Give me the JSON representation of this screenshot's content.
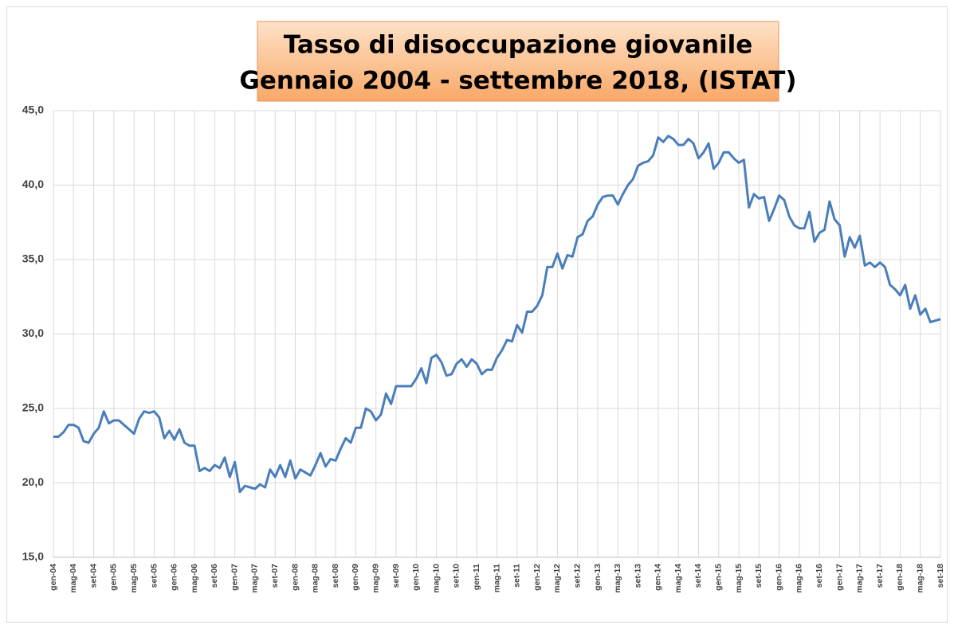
{
  "chart_data": {
    "type": "line",
    "title": "Tasso di disoccupazione giovanile",
    "subtitle": "Gennaio 2004 - settembre 2018, (ISTAT)",
    "categories": [
      "gen-04",
      null,
      null,
      null,
      "mag-04",
      null,
      null,
      null,
      "set-04",
      null,
      null,
      null,
      "gen-05",
      null,
      null,
      null,
      "mag-05",
      null,
      null,
      null,
      "set-05",
      null,
      null,
      null,
      "gen-06",
      null,
      null,
      null,
      "mag-06",
      null,
      null,
      null,
      "set-06",
      null,
      null,
      null,
      "gen-07",
      null,
      null,
      null,
      "mag-07",
      null,
      null,
      null,
      "set-07",
      null,
      null,
      null,
      "gen-08",
      null,
      null,
      null,
      "mag-08",
      null,
      null,
      null,
      "set-08",
      null,
      null,
      null,
      "gen-09",
      null,
      null,
      null,
      "mag-09",
      null,
      null,
      null,
      "set-09",
      null,
      null,
      null,
      "gen-10",
      null,
      null,
      null,
      "mag-10",
      null,
      null,
      null,
      "set-10",
      null,
      null,
      null,
      "gen-11",
      null,
      null,
      null,
      "mag-11",
      null,
      null,
      null,
      "set-11",
      null,
      null,
      null,
      "gen-12",
      null,
      null,
      null,
      "mag-12",
      null,
      null,
      null,
      "set-12",
      null,
      null,
      null,
      "gen-13",
      null,
      null,
      null,
      "mag-13",
      null,
      null,
      null,
      "set-13",
      null,
      null,
      null,
      "gen-14",
      null,
      null,
      null,
      "mag-14",
      null,
      null,
      null,
      "set-14",
      null,
      null,
      null,
      "gen-15",
      null,
      null,
      null,
      "mag-15",
      null,
      null,
      null,
      "set-15",
      null,
      null,
      null,
      "gen-16",
      null,
      null,
      null,
      "mag-16",
      null,
      null,
      null,
      "set-16",
      null,
      null,
      null,
      "gen-17",
      null,
      null,
      null,
      "mag-17",
      null,
      null,
      null,
      "set-17",
      null,
      null,
      null,
      "gen-18",
      null,
      null,
      null,
      "mag-18",
      null,
      null,
      null,
      "set-18"
    ],
    "values": [
      23.1,
      23.1,
      23.4,
      23.9,
      23.9,
      23.7,
      22.8,
      22.7,
      23.3,
      23.7,
      24.8,
      24.0,
      24.2,
      24.2,
      23.9,
      23.6,
      23.3,
      24.3,
      24.8,
      24.7,
      24.8,
      24.4,
      23.0,
      23.5,
      22.9,
      23.6,
      22.7,
      22.5,
      22.5,
      20.8,
      21.0,
      20.8,
      21.2,
      21.0,
      21.7,
      20.4,
      21.4,
      19.4,
      19.8,
      19.7,
      19.6,
      19.9,
      19.7,
      20.9,
      20.4,
      21.2,
      20.4,
      21.5,
      20.3,
      20.9,
      20.7,
      20.5,
      21.2,
      22.0,
      21.1,
      21.6,
      21.5,
      22.3,
      23.0,
      22.7,
      23.7,
      23.7,
      25.0,
      24.8,
      24.2,
      24.6,
      26.0,
      25.3,
      26.5,
      26.5,
      26.5,
      26.5,
      27.0,
      27.7,
      26.7,
      28.4,
      28.6,
      28.1,
      27.2,
      27.3,
      28.0,
      28.3,
      27.8,
      28.3,
      28.0,
      27.3,
      27.6,
      27.6,
      28.4,
      28.9,
      29.6,
      29.5,
      30.6,
      30.1,
      31.5,
      31.5,
      31.9,
      32.6,
      34.5,
      34.5,
      35.4,
      34.4,
      35.3,
      35.2,
      36.5,
      36.7,
      37.6,
      37.9,
      38.7,
      39.2,
      39.3,
      39.3,
      38.7,
      39.4,
      40.0,
      40.4,
      41.3,
      41.5,
      41.6,
      42.0,
      43.2,
      42.9,
      43.3,
      43.1,
      42.7,
      42.7,
      43.1,
      42.8,
      41.8,
      42.2,
      42.8,
      41.1,
      41.5,
      42.2,
      42.2,
      41.8,
      41.5,
      41.7,
      38.5,
      39.4,
      39.1,
      39.2,
      37.6,
      38.4,
      39.3,
      39.0,
      37.9,
      37.3,
      37.1,
      37.1,
      38.2,
      36.2,
      36.8,
      37.0,
      38.9,
      37.7,
      37.3,
      35.2,
      36.5,
      35.8,
      36.6,
      34.6,
      34.8,
      34.5,
      34.8,
      34.5,
      33.3,
      33.0,
      32.6,
      33.3,
      31.7,
      32.6,
      31.3,
      31.7,
      30.8,
      30.9,
      31.0
    ],
    "color": "#4a7ebb",
    "ylim": [
      15,
      45
    ],
    "yticks": [
      {
        "value": 15,
        "label": "15,0"
      },
      {
        "value": 20,
        "label": "20,0"
      },
      {
        "value": 25,
        "label": "25,0"
      },
      {
        "value": 30,
        "label": "30,0"
      },
      {
        "value": 35,
        "label": "35,0"
      },
      {
        "value": 40,
        "label": "40,0"
      },
      {
        "value": 45,
        "label": "45,0"
      }
    ],
    "grid": true
  }
}
